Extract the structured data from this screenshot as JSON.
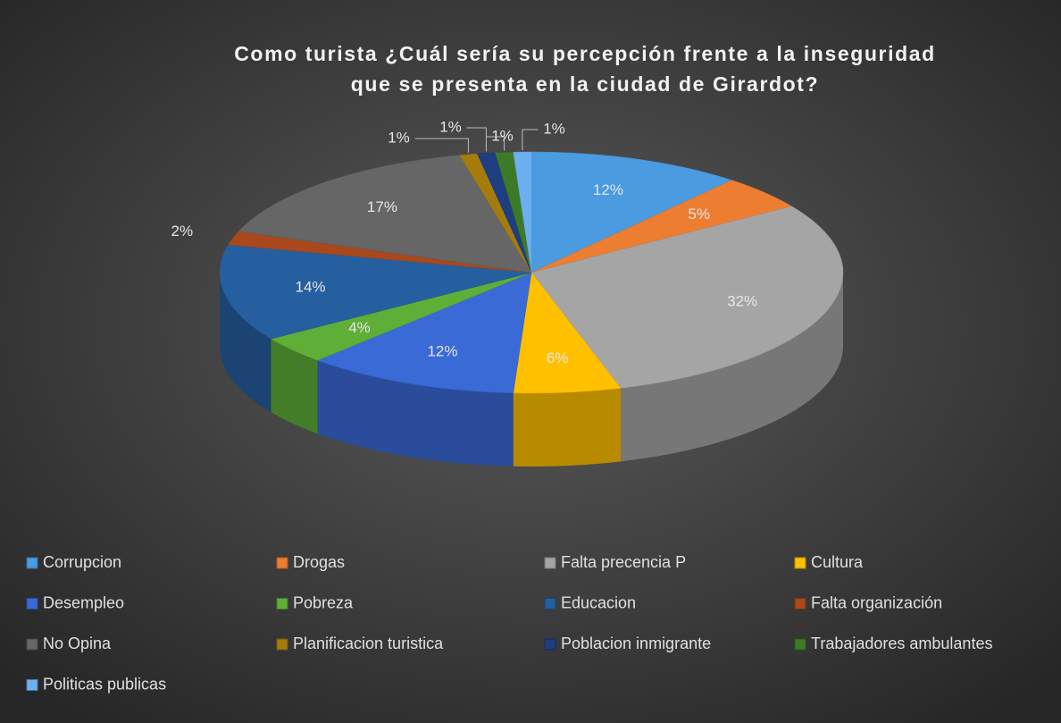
{
  "chart_data": {
    "type": "pie3d",
    "title": [
      "Como turista ¿Cuál sería su percepción frente a la inseguridad",
      "que se presenta en la ciudad de Girardot?"
    ],
    "categories": [
      "Corrupcion",
      "Drogas",
      "Falta precencia P",
      "Cultura",
      "Desempleo",
      "Pobreza",
      "Educacion",
      "Falta organización",
      "No Opina",
      "Planificacion turistica",
      "Poblacion inmigrante",
      "Trabajadores ambulantes",
      "Politicas publicas"
    ],
    "values": [
      12,
      5,
      32,
      6,
      12,
      4,
      14,
      2,
      17,
      1,
      1,
      1,
      1
    ],
    "value_labels": [
      "12%",
      "5%",
      "32%",
      "6%",
      "12%",
      "4%",
      "14%",
      "2%",
      "17%",
      "1%",
      "1%",
      "1%",
      "1%"
    ],
    "colors": [
      "#4a9be0",
      "#ed7d31",
      "#a5a5a5",
      "#ffc000",
      "#3a6ad6",
      "#5eae38",
      "#265f9f",
      "#a8481c",
      "#666666",
      "#a47c0e",
      "#1f3e80",
      "#3d7a27",
      "#6cb0f0"
    ],
    "legend": "bottom"
  }
}
